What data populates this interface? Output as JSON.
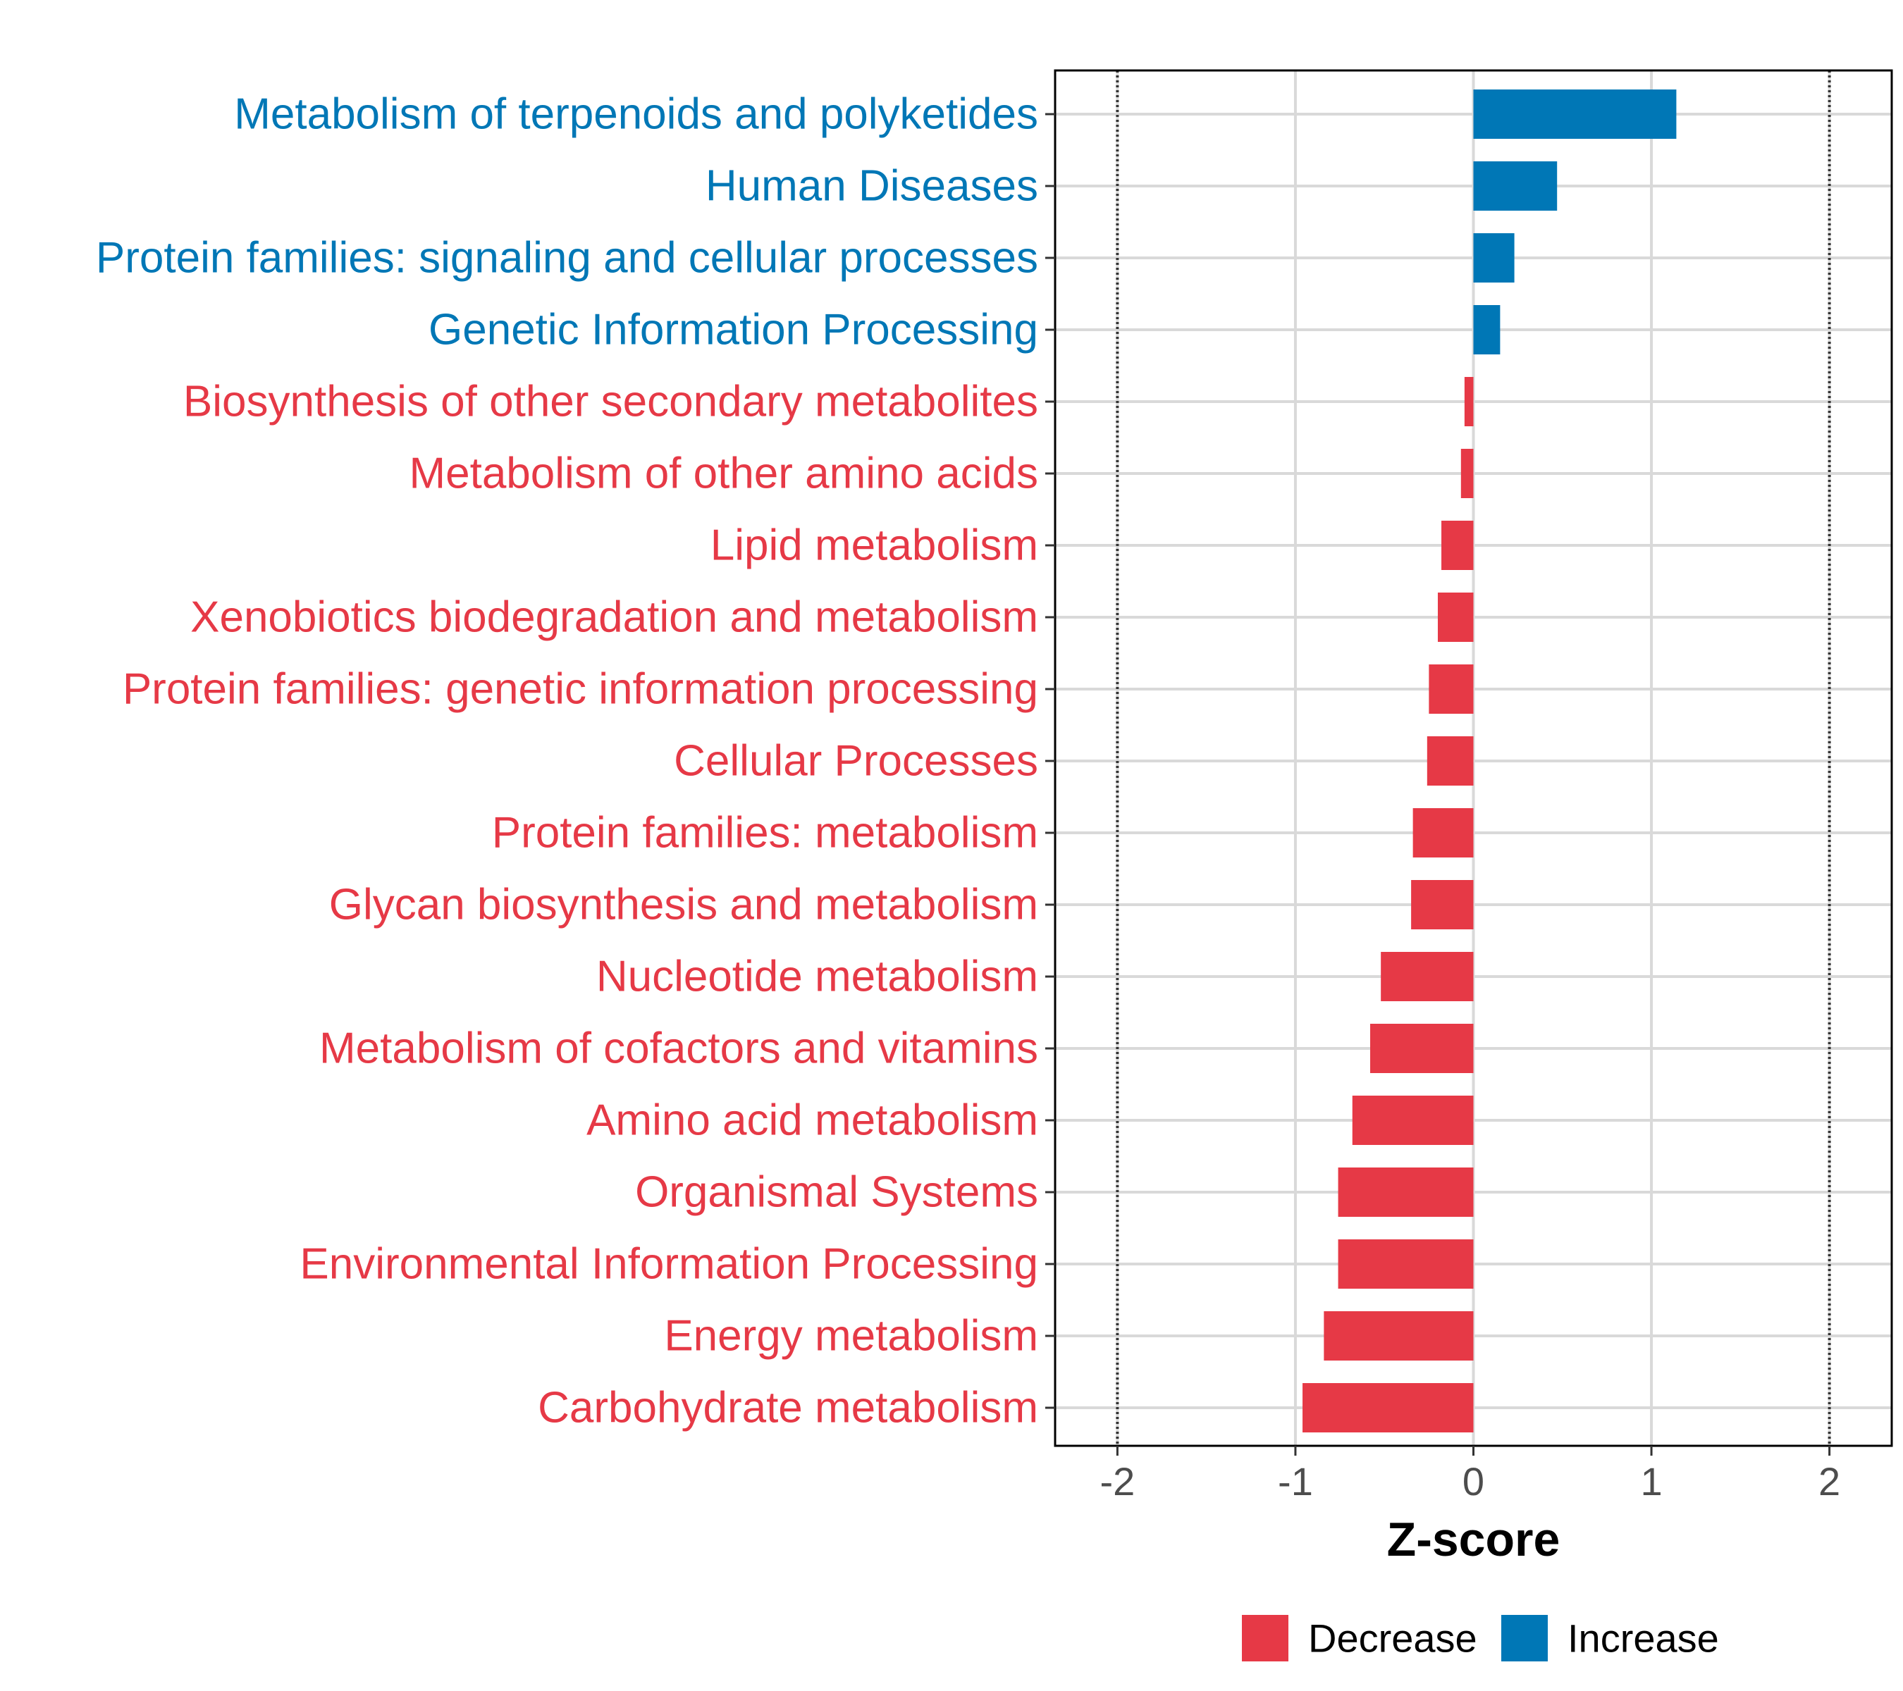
{
  "chart_data": {
    "type": "bar",
    "orientation": "horizontal",
    "xlabel": "Z-score",
    "xlim": [
      -2.35,
      2.35
    ],
    "xticks": [
      -2,
      -1,
      0,
      1,
      2
    ],
    "xtick_labels": [
      "-2",
      "-1",
      "0",
      "1",
      "2"
    ],
    "reference_lines": [
      -2,
      2
    ],
    "categories": [
      "Metabolism of terpenoids and polyketides",
      "Human Diseases",
      "Protein families: signaling and cellular processes",
      "Genetic Information Processing",
      "Biosynthesis of other secondary metabolites",
      "Metabolism of other amino acids",
      "Lipid metabolism",
      "Xenobiotics biodegradation and metabolism",
      "Protein families: genetic information processing",
      "Cellular Processes",
      "Protein families: metabolism",
      "Glycan biosynthesis and metabolism",
      "Nucleotide metabolism",
      "Metabolism of cofactors and vitamins",
      "Amino acid metabolism",
      "Organismal Systems",
      "Environmental Information Processing",
      "Energy metabolism",
      "Carbohydrate metabolism"
    ],
    "values": [
      1.14,
      0.47,
      0.23,
      0.15,
      -0.05,
      -0.07,
      -0.18,
      -0.2,
      -0.25,
      -0.26,
      -0.34,
      -0.35,
      -0.52,
      -0.58,
      -0.68,
      -0.76,
      -0.76,
      -0.84,
      -0.96
    ],
    "groups": [
      "Increase",
      "Increase",
      "Increase",
      "Increase",
      "Decrease",
      "Decrease",
      "Decrease",
      "Decrease",
      "Decrease",
      "Decrease",
      "Decrease",
      "Decrease",
      "Decrease",
      "Decrease",
      "Decrease",
      "Decrease",
      "Decrease",
      "Decrease",
      "Decrease"
    ],
    "legend": {
      "position": "bottom",
      "entries": [
        {
          "label": "Decrease",
          "color": "#E63946"
        },
        {
          "label": "Increase",
          "color": "#0077B6"
        }
      ]
    },
    "colors": {
      "Decrease": "#E63946",
      "Increase": "#0077B6"
    }
  }
}
